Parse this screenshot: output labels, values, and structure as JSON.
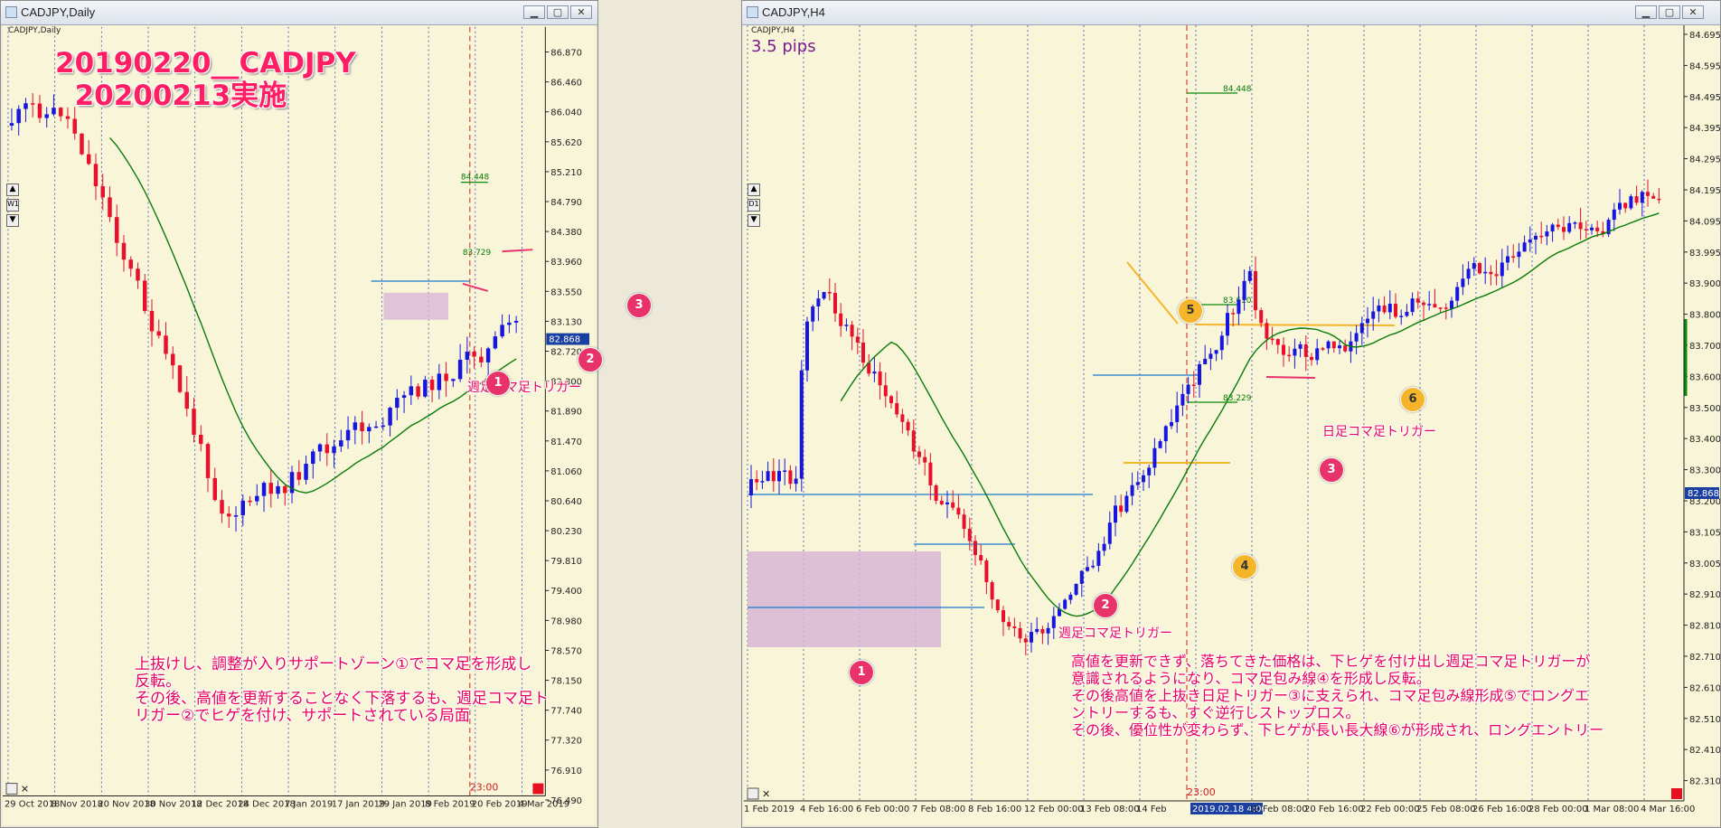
{
  "left": {
    "window_title": "CADJPY,Daily",
    "chart_header": "CADJPY,Daily",
    "timeframe_badge": "W1",
    "big_title_line1": "20190220__CADJPY",
    "big_title_line2": "20200213実施",
    "note": "上抜けし、調整が入りサポートゾーン①でコマ足を形成し\n反転。\nその後、高値を更新することなく下落するも、週足コマ足ト\nリガー②でヒゲを付け、サポートされている局面",
    "label_trigger": "週足コマ足トリガー",
    "badges": [
      "1",
      "2",
      "3"
    ],
    "price_ticks": [
      "86.870",
      "86.460",
      "86.040",
      "85.620",
      "85.210",
      "84.790",
      "84.380",
      "83.960",
      "83.550",
      "83.130",
      "82.720",
      "82.300",
      "81.890",
      "81.470",
      "81.060",
      "80.640",
      "80.230",
      "79.810",
      "79.400",
      "78.980",
      "78.570",
      "78.150",
      "77.740",
      "77.320",
      "76.910",
      "76.490"
    ],
    "current_price": "82.868",
    "level_labels": [
      "84.448",
      "83.729"
    ],
    "time_ticks": [
      "29 Oct 2018",
      "8 Nov 2018",
      "20 Nov 2018",
      "30 Nov 2018",
      "12 Dec 2018",
      "24 Dec 2018",
      "7 Jan 2019",
      "17 Jan 2019",
      "29 Jan 2019",
      "8 Feb 2019",
      "20 Feb 2019",
      "4 Mar 2019"
    ],
    "time_marker": "23:00",
    "colors": {
      "bull": "#1616e0",
      "bear": "#e8102a",
      "ma": "#0a7a0a",
      "bg": "#f8f5d8"
    }
  },
  "right": {
    "window_title": "CADJPY,H4",
    "chart_header": "CADJPY,H4",
    "timeframe_badge": "D1",
    "pips": "3.5 pips",
    "note": "高値を更新できず、落ちてきた価格は、下ヒゲを付け出し週足コマ足トリガーが\n意識されるようになり、コマ足包み線④を形成し反転。\nその後高値を上抜き日足トリガー③に支えられ、コマ足包み線形成⑤でロングエ\nントリーするも、すぐ逆行しストップロス。\nその後、優位性が変わらず、下ヒゲが長い長大線⑥が形成され、ロングエントリー",
    "label_weekly": "週足コマ足トリガー",
    "label_daily": "日足コマ足トリガー",
    "badges": [
      "1",
      "2",
      "3",
      "4",
      "5",
      "6"
    ],
    "price_ticks": [
      "84.695",
      "84.595",
      "84.495",
      "84.395",
      "84.295",
      "84.195",
      "84.095",
      "83.995",
      "83.900",
      "83.800",
      "83.700",
      "83.600",
      "83.500",
      "83.400",
      "83.300",
      "83.200",
      "83.105",
      "83.005",
      "82.910",
      "82.810",
      "82.710",
      "82.610",
      "82.510",
      "82.410",
      "82.310"
    ],
    "current_price": "82.868",
    "level_labels": [
      "84.448",
      "83.610",
      "83.229"
    ],
    "time_ticks": [
      "1 Feb 2019",
      "4 Feb 16:00",
      "6 Feb 00:00",
      "7 Feb 08:00",
      "8 Feb 16:00",
      "12 Feb 00:00",
      "13 Feb 08:00",
      "14 Feb",
      "2019.02.18 4:00",
      "19 Feb 08:00",
      "20 Feb 16:00",
      "22 Feb 00:00",
      "25 Feb 08:00",
      "26 Feb 16:00",
      "28 Feb 00:00",
      "1 Mar 08:00",
      "4 Mar 16:00"
    ],
    "time_marker": "23:00",
    "colors": {
      "bull": "#1616e0",
      "bear": "#e8102a",
      "ma": "#0a7a0a",
      "zone": "#d9b6d6",
      "arrow_pink": "#e8336a",
      "arrow_orange": "#f5b52a"
    }
  }
}
